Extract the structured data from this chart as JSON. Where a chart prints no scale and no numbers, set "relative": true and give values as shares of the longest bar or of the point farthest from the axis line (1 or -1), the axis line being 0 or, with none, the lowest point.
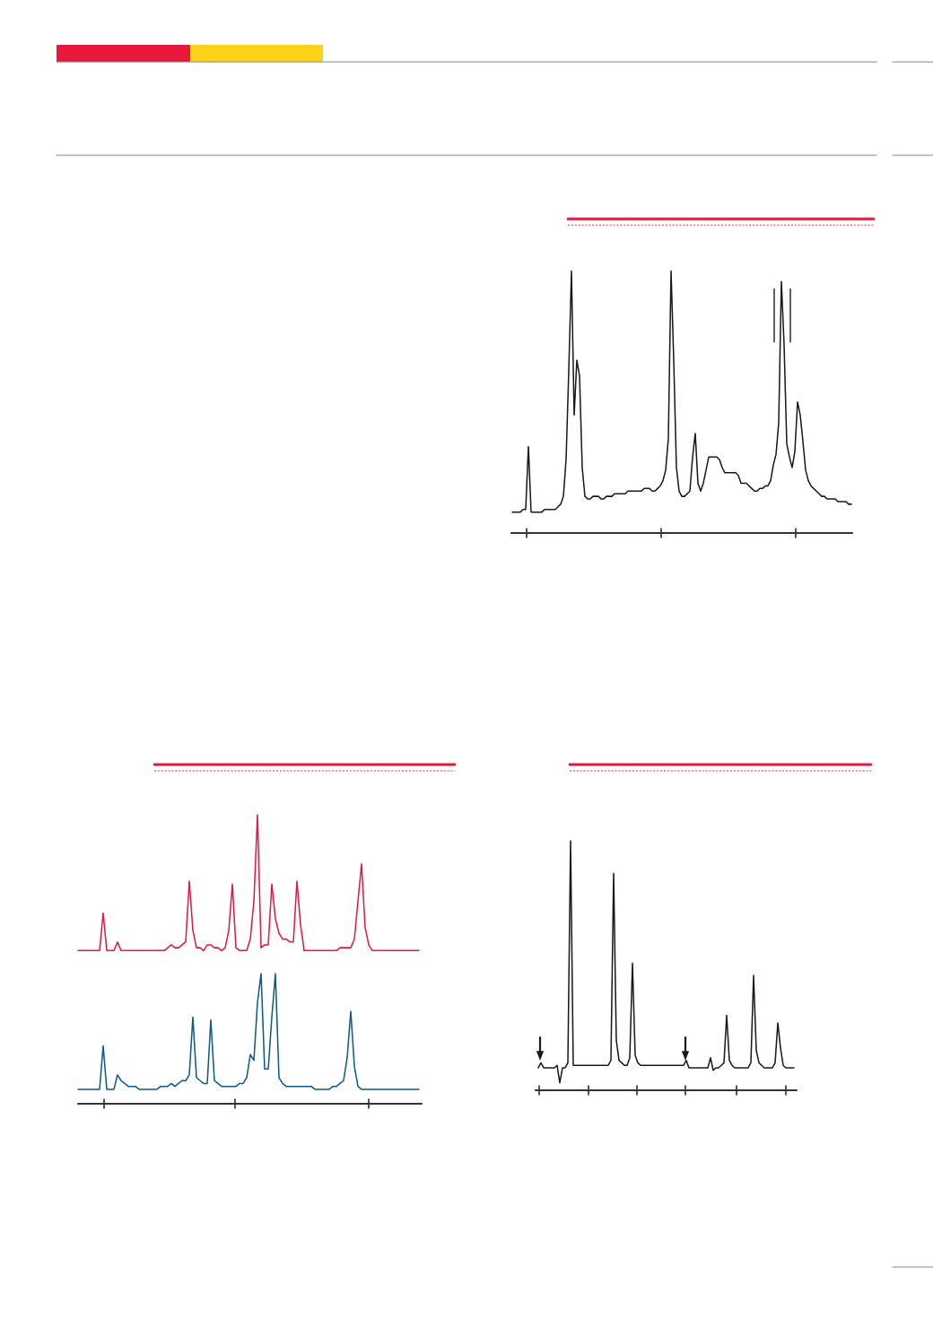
{
  "chart_data": [
    {
      "type": "line",
      "relative": true,
      "categories": [
        null,
        null,
        null,
        null,
        null,
        null,
        null,
        null,
        null,
        null,
        null,
        null,
        null,
        null,
        null,
        null,
        null,
        null,
        null,
        null,
        null,
        null,
        null,
        null,
        null,
        null,
        null,
        null,
        null,
        null,
        null,
        null,
        null,
        null,
        null,
        null,
        null,
        null,
        null,
        null,
        null,
        null,
        null,
        null,
        null,
        null,
        null,
        null,
        null,
        null,
        null,
        null,
        null,
        null,
        null,
        null,
        null,
        null,
        null,
        null,
        null,
        null,
        null,
        null,
        null,
        null,
        null,
        null,
        null,
        null,
        null,
        null,
        null,
        null,
        null,
        null,
        null,
        null,
        null,
        null,
        null,
        null,
        null,
        null,
        null,
        null,
        null,
        null,
        null,
        null,
        null,
        null,
        null,
        null,
        null,
        null,
        null,
        null,
        null,
        null,
        null,
        null,
        null,
        null,
        null,
        null,
        null,
        null,
        null,
        null,
        null,
        null,
        null,
        null,
        null,
        null,
        null,
        null,
        null,
        null,
        null,
        null,
        null,
        null,
        null,
        null,
        null
      ],
      "series": [
        {
          "color": "#1a1a1a",
          "values": [
            0.08,
            0.08,
            0.08,
            0.08,
            0.09,
            0.09,
            0.33,
            0.08,
            0.08,
            0.08,
            0.08,
            0.08,
            0.09,
            0.09,
            0.09,
            0.09,
            0.09,
            0.1,
            0.11,
            0.14,
            0.28,
            0.62,
            1,
            0.45,
            0.66,
            0.6,
            0.25,
            0.14,
            0.13,
            0.13,
            0.14,
            0.14,
            0.14,
            0.13,
            0.13,
            0.14,
            0.14,
            0.14,
            0.15,
            0.15,
            0.15,
            0.15,
            0.15,
            0.16,
            0.16,
            0.16,
            0.16,
            0.16,
            0.16,
            0.17,
            0.17,
            0.17,
            0.16,
            0.16,
            0.17,
            0.18,
            0.2,
            0.24,
            0.36,
            1,
            0.66,
            0.25,
            0.16,
            0.14,
            0.14,
            0.15,
            0.16,
            0.29,
            0.38,
            0.19,
            0.16,
            0.19,
            0.24,
            0.29,
            0.29,
            0.29,
            0.29,
            0.28,
            0.25,
            0.23,
            0.23,
            0.23,
            0.23,
            0.23,
            0.22,
            0.19,
            0.19,
            0.19,
            0.18,
            0.17,
            0.16,
            0.16,
            0.17,
            0.17,
            0.18,
            0.18,
            0.2,
            0.26,
            0.3,
            0.42,
            0.96,
            0.72,
            0.34,
            0.29,
            0.25,
            0.31,
            0.5,
            0.45,
            0.35,
            0.24,
            0.2,
            0.18,
            0.17,
            0.16,
            0.15,
            0.14,
            0.14,
            0.13,
            0.13,
            0.13,
            0.13,
            0.12,
            0.12,
            0.12,
            0.12,
            0.11,
            0.11
          ]
        }
      ]
    },
    {
      "type": "line",
      "relative": true,
      "categories": [
        null,
        null,
        null,
        null,
        null,
        null,
        null,
        null,
        null,
        null,
        null,
        null,
        null,
        null,
        null,
        null,
        null,
        null,
        null,
        null,
        null,
        null,
        null,
        null,
        null,
        null,
        null,
        null,
        null,
        null,
        null,
        null,
        null,
        null,
        null,
        null,
        null,
        null,
        null,
        null,
        null,
        null,
        null,
        null,
        null,
        null,
        null,
        null,
        null,
        null,
        null,
        null,
        null,
        null,
        null,
        null,
        null,
        null,
        null,
        null,
        null,
        null,
        null,
        null,
        null,
        null,
        null,
        null,
        null,
        null,
        null,
        null,
        null,
        null,
        null,
        null,
        null,
        null,
        null,
        null,
        null,
        null,
        null,
        null,
        null,
        null,
        null,
        null,
        null,
        null,
        null,
        null,
        null,
        null,
        null,
        null
      ],
      "series": [
        {
          "color": "#e8173c",
          "values": [
            0.53,
            0.53,
            0.53,
            0.53,
            0.53,
            0.53,
            0.53,
            0.66,
            0.53,
            0.53,
            0.53,
            0.56,
            0.53,
            0.53,
            0.53,
            0.53,
            0.53,
            0.53,
            0.53,
            0.53,
            0.53,
            0.53,
            0.53,
            0.53,
            0.53,
            0.54,
            0.55,
            0.54,
            0.54,
            0.55,
            0.56,
            0.77,
            0.6,
            0.54,
            0.54,
            0.53,
            0.55,
            0.55,
            0.54,
            0.54,
            0.53,
            0.54,
            0.6,
            0.76,
            0.54,
            0.53,
            0.53,
            0.53,
            0.57,
            0.7,
            1,
            0.54,
            0.55,
            0.55,
            0.76,
            0.64,
            0.59,
            0.57,
            0.57,
            0.56,
            0.56,
            0.77,
            0.62,
            0.53,
            0.53,
            0.53,
            0.53,
            0.53,
            0.53,
            0.53,
            0.53,
            0.53,
            0.53,
            0.54,
            0.54,
            0.54,
            0.54,
            0.57,
            0.7,
            0.83,
            0.61,
            0.55,
            0.53,
            0.53,
            0.53,
            0.53,
            0.53,
            0.53,
            0.53,
            0.53,
            0.53,
            0.53,
            0.53,
            0.53,
            0.53,
            0.53
          ]
        },
        {
          "color": "#0e5a8a",
          "values": [
            0.05,
            0.05,
            0.05,
            0.05,
            0.05,
            0.05,
            0.05,
            0.2,
            0.05,
            0.05,
            0.05,
            0.1,
            0.08,
            0.07,
            0.06,
            0.06,
            0.06,
            0.05,
            0.05,
            0.05,
            0.05,
            0.05,
            0.05,
            0.06,
            0.06,
            0.06,
            0.07,
            0.06,
            0.07,
            0.08,
            0.08,
            0.1,
            0.3,
            0.09,
            0.08,
            0.07,
            0.07,
            0.29,
            0.08,
            0.07,
            0.06,
            0.06,
            0.06,
            0.06,
            0.06,
            0.07,
            0.07,
            0.09,
            0.17,
            0.15,
            0.35,
            0.45,
            0.12,
            0.12,
            0.3,
            0.45,
            0.09,
            0.07,
            0.06,
            0.06,
            0.06,
            0.06,
            0.06,
            0.06,
            0.06,
            0.06,
            0.05,
            0.05,
            0.05,
            0.05,
            0.05,
            0.06,
            0.06,
            0.07,
            0.08,
            0.16,
            0.32,
            0.13,
            0.06,
            0.05,
            0.05,
            0.05,
            0.05,
            0.05,
            0.05,
            0.05,
            0.05,
            0.05,
            0.05,
            0.05,
            0.05,
            0.05,
            0.05,
            0.05,
            0.05,
            0.05
          ]
        }
      ]
    },
    {
      "type": "line",
      "relative": true,
      "categories": [
        null,
        null,
        null,
        null,
        null,
        null,
        null,
        null,
        null,
        null,
        null,
        null,
        null,
        null,
        null,
        null,
        null,
        null,
        null,
        null,
        null,
        null,
        null,
        null,
        null,
        null,
        null,
        null,
        null,
        null,
        null,
        null,
        null,
        null,
        null,
        null,
        null,
        null,
        null,
        null,
        null,
        null,
        null,
        null,
        null,
        null,
        null,
        null,
        null,
        null,
        null,
        null,
        null,
        null,
        null,
        null,
        null,
        null,
        null,
        null,
        null,
        null,
        null,
        null,
        null,
        null,
        null,
        null,
        null,
        null,
        null,
        null,
        null,
        null,
        null,
        null,
        null,
        null,
        null,
        null,
        null,
        null,
        null,
        null,
        null,
        null,
        null,
        null,
        null,
        null,
        null,
        null,
        null,
        null,
        null,
        null
      ],
      "series": [
        {
          "color": "#1a1a1a",
          "values": [
            0.09,
            0.11,
            0.09,
            0.09,
            0.09,
            0.09,
            0.09,
            0.1,
            0.03,
            0.09,
            0.09,
            0.11,
            1,
            0.1,
            0.1,
            0.1,
            0.1,
            0.1,
            0.1,
            0.1,
            0.1,
            0.1,
            0.1,
            0.1,
            0.1,
            0.1,
            0.1,
            0.12,
            0.87,
            0.2,
            0.12,
            0.11,
            0.1,
            0.1,
            0.13,
            0.51,
            0.14,
            0.11,
            0.1,
            0.1,
            0.1,
            0.1,
            0.1,
            0.1,
            0.1,
            0.1,
            0.1,
            0.1,
            0.1,
            0.1,
            0.1,
            0.1,
            0.1,
            0.1,
            0.1,
            0.12,
            0.09,
            0.09,
            0.09,
            0.09,
            0.09,
            0.09,
            0.09,
            0.09,
            0.13,
            0.08,
            0.09,
            0.09,
            0.1,
            0.11,
            0.3,
            0.12,
            0.1,
            0.09,
            0.09,
            0.09,
            0.09,
            0.09,
            0.09,
            0.11,
            0.46,
            0.16,
            0.11,
            0.1,
            0.09,
            0.09,
            0.09,
            0.09,
            0.11,
            0.27,
            0.17,
            0.1,
            0.09,
            0.09,
            0.09,
            0.09
          ]
        }
      ]
    }
  ]
}
